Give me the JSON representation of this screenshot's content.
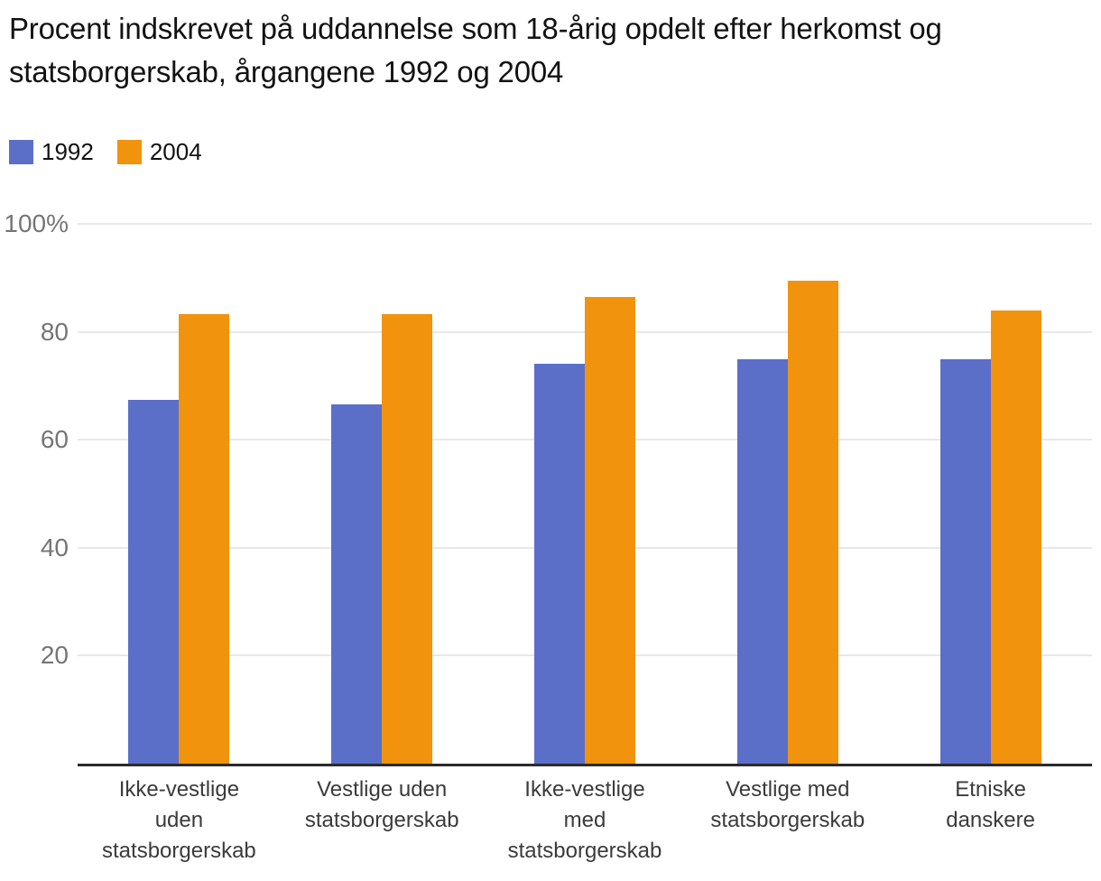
{
  "title": "Procent indskrevet på uddannelse som 18-årig opdelt efter herkomst og statsborgerskab, årgangene 1992 og 2004",
  "legend": {
    "items": [
      {
        "label": "1992",
        "color": "#5B6FC9"
      },
      {
        "label": "2004",
        "color": "#F1930D"
      }
    ]
  },
  "chart_data": {
    "type": "bar",
    "title": "Procent indskrevet på uddannelse som 18-årig opdelt efter herkomst og statsborgerskab, årgangene 1992 og 2004",
    "categories": [
      "Ikke-vestlige uden statsborgerskab",
      "Vestlige uden statsborgerskab",
      "Ikke-vestlige med statsborgerskab",
      "Vestlige med statsborgerskab",
      "Etniske danskere"
    ],
    "category_label_lines": [
      [
        "Ikke-vestlige",
        "uden",
        "statsborgerskab"
      ],
      [
        "Vestlige uden",
        "statsborgerskab"
      ],
      [
        "Ikke-vestlige",
        "med",
        "statsborgerskab"
      ],
      [
        "Vestlige med",
        "statsborgerskab"
      ],
      [
        "Etniske",
        "danskere"
      ]
    ],
    "series": [
      {
        "name": "1992",
        "color": "#5B6FC9",
        "values": [
          67.4,
          66.5,
          74.0,
          74.9,
          75.0
        ]
      },
      {
        "name": "2004",
        "color": "#F1930D",
        "values": [
          83.2,
          83.2,
          86.5,
          89.4,
          84.0
        ]
      }
    ],
    "xlabel": "",
    "ylabel": "",
    "ylim": [
      0,
      100
    ],
    "yticks": [
      {
        "value": 100,
        "label": "100%"
      },
      {
        "value": 80,
        "label": "80"
      },
      {
        "value": 60,
        "label": "60"
      },
      {
        "value": 40,
        "label": "40"
      },
      {
        "value": 20,
        "label": "20"
      }
    ],
    "grid": true,
    "legend_position": "top-left"
  },
  "colors": {
    "series_1992": "#5B6FC9",
    "series_2004": "#F1930D",
    "gridline": "#E8E8E8",
    "axis_line": "#2B2B2B",
    "ytick_text": "#757575",
    "xtick_text": "#3B3B3B",
    "title_text": "#121212",
    "background": "#FFFFFF"
  }
}
